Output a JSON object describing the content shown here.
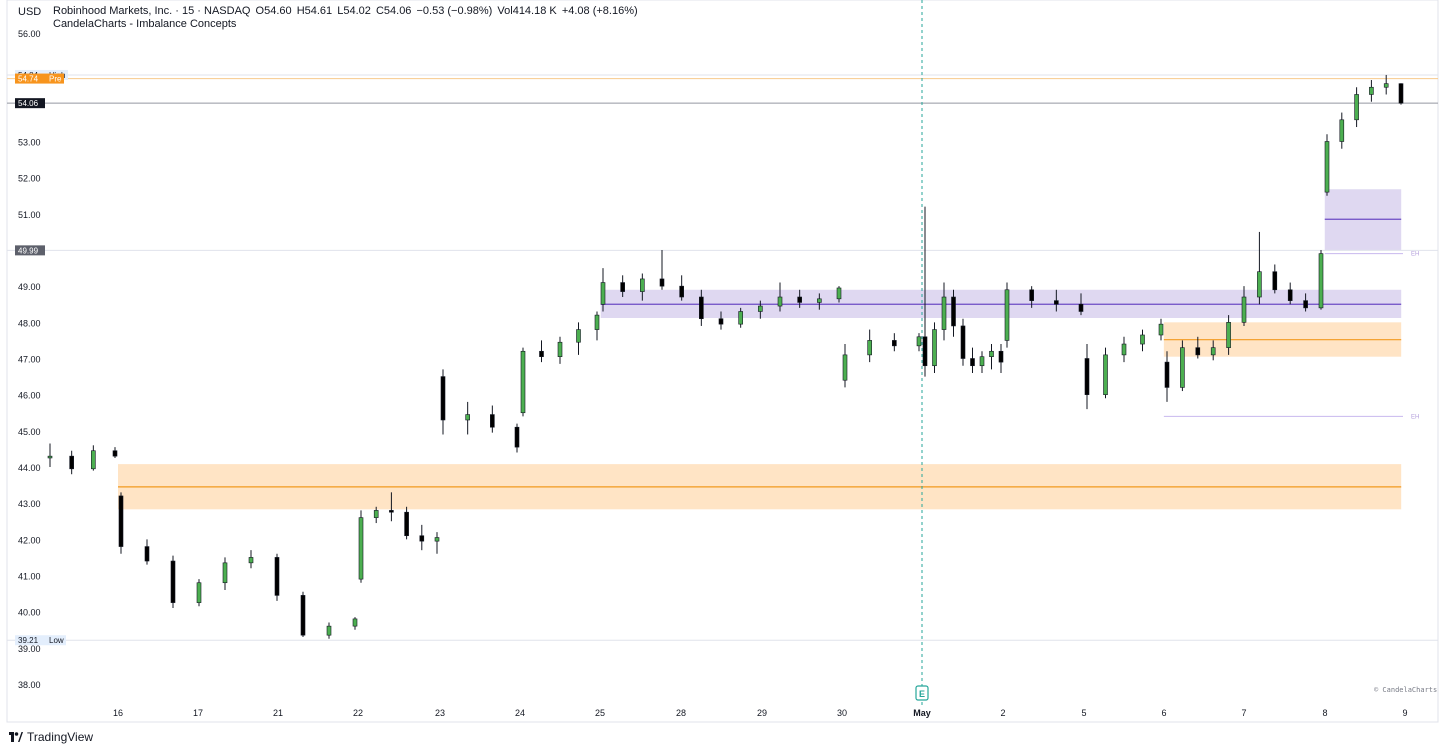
{
  "header": {
    "currency": "USD",
    "symbol_line": "Robinhood Markets, Inc. · 15 · NASDAQ",
    "open": "O54.60",
    "high": "H54.61",
    "low": "L54.02",
    "close": "C54.06",
    "change": "−0.53 (−0.98%)",
    "volume": "Vol414.18 K",
    "extra_change": "+4.08 (+8.16%)",
    "indicator": "CandelaCharts - Imbalance Concepts"
  },
  "footer": {
    "brand": "TradingView",
    "credit": "© CandelaCharts"
  },
  "colors": {
    "up": "#4caf50",
    "down": "#000000",
    "bull_zone": "#ffe3c2",
    "bull_line": "#f29a1f",
    "bear_zone": "#ddd6f0",
    "bear_line": "#6b4bc4",
    "event_line": "#26a69a"
  },
  "chart_data": {
    "type": "candlestick",
    "y_range": [
      37.6,
      56.3
    ],
    "y_ticks": [
      "56.00",
      "53.00",
      "52.00",
      "51.00",
      "49.00",
      "48.00",
      "47.00",
      "46.00",
      "45.00",
      "44.00",
      "43.00",
      "42.00",
      "41.00",
      "40.00",
      "39.00",
      "38.00"
    ],
    "x_ticks": [
      "16",
      "17",
      "21",
      "22",
      "23",
      "24",
      "25",
      "28",
      "29",
      "30",
      "May",
      "2",
      "5",
      "6",
      "7",
      "8",
      "9"
    ],
    "price_labels": [
      {
        "value": 54.84,
        "text": "54.84",
        "tag": "High",
        "style": "soft"
      },
      {
        "value": 54.74,
        "text": "54.74",
        "tag": "Pre",
        "style": "orange"
      },
      {
        "value": 54.06,
        "text": "54.06",
        "tag": "",
        "style": "dark"
      },
      {
        "value": 49.99,
        "text": "49.99",
        "tag": "",
        "style": "grey"
      },
      {
        "value": 39.21,
        "text": "39.21",
        "tag": "Low",
        "style": "soft"
      }
    ],
    "zones": [
      {
        "kind": "bullish",
        "top": 44.08,
        "bottom": 42.83,
        "mid": 43.45,
        "from_day": 0.0,
        "to_day": 16.0
      },
      {
        "kind": "bearish",
        "top": 48.9,
        "bottom": 48.12,
        "mid": 48.5,
        "from_day": 6.0,
        "to_day": 16.0
      },
      {
        "kind": "bullish",
        "top": 48.0,
        "bottom": 47.05,
        "mid": 47.52,
        "from_day": 13.0,
        "to_day": 16.0
      },
      {
        "kind": "bearish",
        "top": 51.68,
        "bottom": 50.0,
        "mid": 50.85,
        "from_day": 15.0,
        "to_day": 16.0
      }
    ],
    "eh_labels": [
      {
        "value": 49.9,
        "text": "EH"
      },
      {
        "value": 45.4,
        "text": "EH"
      }
    ],
    "event": {
      "label": "E",
      "day_index": 10
    },
    "candles": [
      [
        44.25,
        44.65,
        44.0,
        44.3
      ],
      [
        44.3,
        44.45,
        43.8,
        43.95
      ],
      [
        43.95,
        44.6,
        43.9,
        44.45
      ],
      [
        44.45,
        44.55,
        44.25,
        44.3
      ],
      [
        43.2,
        43.3,
        41.6,
        41.8
      ],
      [
        41.8,
        42.0,
        41.3,
        41.4
      ],
      [
        41.4,
        41.55,
        40.1,
        40.25
      ],
      [
        40.25,
        40.9,
        40.15,
        40.8
      ],
      [
        40.8,
        41.5,
        40.6,
        41.35
      ],
      [
        41.35,
        41.7,
        41.2,
        41.5
      ],
      [
        41.5,
        41.6,
        40.3,
        40.45
      ],
      [
        40.45,
        40.55,
        39.3,
        39.35
      ],
      [
        39.35,
        39.7,
        39.25,
        39.6
      ],
      [
        39.6,
        39.85,
        39.5,
        39.8
      ],
      [
        40.9,
        42.8,
        40.8,
        42.6
      ],
      [
        42.6,
        42.9,
        42.45,
        42.8
      ],
      [
        42.8,
        43.3,
        42.5,
        42.75
      ],
      [
        42.75,
        42.9,
        42.0,
        42.1
      ],
      [
        42.1,
        42.4,
        41.7,
        41.95
      ],
      [
        41.95,
        42.2,
        41.6,
        42.05
      ],
      [
        46.5,
        46.7,
        44.9,
        45.3
      ],
      [
        45.3,
        45.8,
        44.9,
        45.45
      ],
      [
        45.45,
        45.7,
        44.95,
        45.1
      ],
      [
        45.1,
        45.2,
        44.4,
        44.55
      ],
      [
        45.5,
        47.3,
        45.4,
        47.2
      ],
      [
        47.2,
        47.5,
        46.9,
        47.05
      ],
      [
        47.05,
        47.6,
        46.85,
        47.45
      ],
      [
        47.45,
        48.0,
        47.1,
        47.8
      ],
      [
        47.8,
        48.3,
        47.5,
        48.2
      ],
      [
        48.5,
        49.5,
        48.3,
        49.1
      ],
      [
        49.1,
        49.3,
        48.7,
        48.85
      ],
      [
        48.85,
        49.35,
        48.6,
        49.2
      ],
      [
        49.2,
        50.0,
        48.9,
        49.0
      ],
      [
        49.0,
        49.3,
        48.6,
        48.7
      ],
      [
        48.7,
        48.9,
        47.9,
        48.1
      ],
      [
        48.1,
        48.3,
        47.8,
        47.95
      ],
      [
        47.95,
        48.4,
        47.85,
        48.3
      ],
      [
        48.3,
        48.6,
        48.1,
        48.45
      ],
      [
        48.45,
        49.1,
        48.3,
        48.7
      ],
      [
        48.7,
        48.9,
        48.4,
        48.55
      ],
      [
        48.55,
        48.8,
        48.35,
        48.65
      ],
      [
        48.65,
        49.0,
        48.55,
        48.95
      ],
      [
        46.4,
        47.4,
        46.2,
        47.1
      ],
      [
        47.1,
        47.8,
        46.9,
        47.5
      ],
      [
        47.5,
        47.7,
        47.2,
        47.35
      ],
      [
        47.35,
        47.7,
        47.2,
        47.6
      ],
      [
        47.6,
        51.2,
        46.5,
        46.8
      ],
      [
        46.8,
        48.0,
        46.6,
        47.8
      ],
      [
        47.8,
        49.1,
        47.5,
        48.7
      ],
      [
        48.7,
        48.9,
        47.6,
        47.9
      ],
      [
        47.9,
        48.1,
        46.8,
        47.0
      ],
      [
        47.0,
        47.3,
        46.6,
        46.8
      ],
      [
        46.8,
        47.2,
        46.6,
        47.05
      ],
      [
        47.05,
        47.4,
        46.7,
        47.2
      ],
      [
        47.2,
        47.4,
        46.6,
        46.9
      ],
      [
        47.5,
        49.1,
        47.3,
        48.9
      ],
      [
        48.9,
        49.0,
        48.4,
        48.6
      ],
      [
        48.6,
        48.9,
        48.3,
        48.5
      ],
      [
        48.5,
        48.8,
        48.2,
        48.3
      ],
      [
        47.0,
        47.4,
        45.6,
        46.0
      ],
      [
        46.0,
        47.3,
        45.9,
        47.1
      ],
      [
        47.1,
        47.6,
        46.9,
        47.4
      ],
      [
        47.4,
        47.8,
        47.2,
        47.65
      ],
      [
        47.65,
        48.1,
        47.5,
        47.95
      ],
      [
        46.9,
        47.2,
        45.8,
        46.2
      ],
      [
        46.2,
        47.5,
        46.1,
        47.3
      ],
      [
        47.3,
        47.6,
        47.0,
        47.1
      ],
      [
        47.1,
        47.5,
        46.95,
        47.3
      ],
      [
        47.3,
        48.2,
        47.1,
        48.0
      ],
      [
        48.0,
        49.0,
        47.9,
        48.7
      ],
      [
        48.7,
        50.5,
        48.5,
        49.4
      ],
      [
        49.4,
        49.6,
        48.8,
        48.9
      ],
      [
        48.9,
        49.1,
        48.5,
        48.6
      ],
      [
        48.6,
        48.8,
        48.3,
        48.4
      ],
      [
        48.4,
        50.0,
        48.35,
        49.9
      ],
      [
        51.6,
        53.2,
        51.5,
        53.0
      ],
      [
        53.0,
        53.8,
        52.8,
        53.6
      ],
      [
        53.6,
        54.5,
        53.4,
        54.3
      ],
      [
        54.3,
        54.7,
        54.1,
        54.5
      ],
      [
        54.5,
        54.84,
        54.3,
        54.6
      ],
      [
        54.6,
        54.61,
        54.02,
        54.06
      ]
    ]
  }
}
